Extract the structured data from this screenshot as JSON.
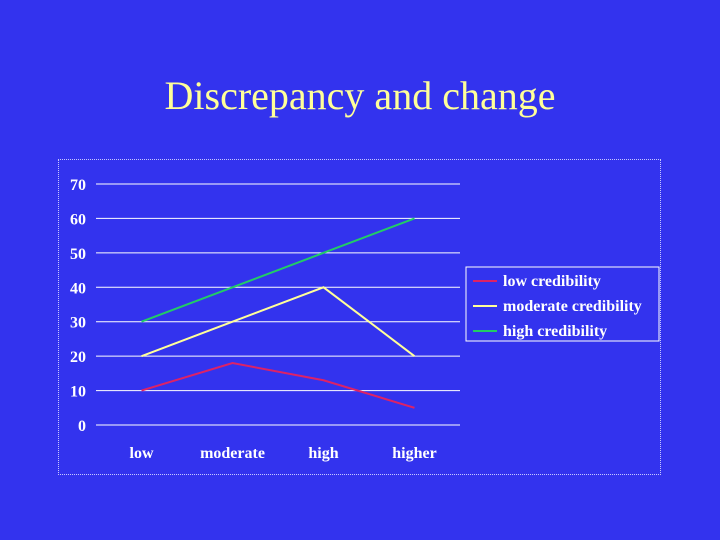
{
  "title": "Discrepancy and change",
  "chart_data": {
    "type": "line",
    "categories": [
      "low",
      "moderate",
      "high",
      "higher"
    ],
    "series": [
      {
        "name": "low credibility",
        "values": [
          10,
          18,
          13,
          5
        ],
        "color": "#dd2266"
      },
      {
        "name": "moderate credibility",
        "values": [
          20,
          30,
          40,
          20
        ],
        "color": "#ffff99"
      },
      {
        "name": "high credibility",
        "values": [
          30,
          40,
          50,
          60
        ],
        "color": "#22cc66"
      }
    ],
    "y_ticks": [
      0,
      10,
      20,
      30,
      40,
      50,
      60,
      70
    ],
    "ylim": [
      0,
      70
    ],
    "grid": true,
    "legend": "right",
    "colors": {
      "background": "#3333ee",
      "grid": "#ffffff",
      "title": "#ffff99",
      "text": "#ffffff"
    }
  }
}
